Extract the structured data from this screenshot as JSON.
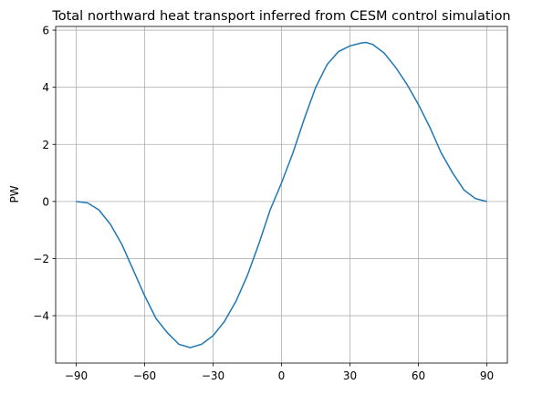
{
  "chart_data": {
    "type": "line",
    "title": "Total northward heat transport inferred from CESM control simulation",
    "ylabel": "PW",
    "x": [
      -90,
      -85,
      -80,
      -75,
      -70,
      -65,
      -60,
      -55,
      -50,
      -45,
      -40,
      -35,
      -30,
      -25,
      -20,
      -15,
      -10,
      -5,
      0,
      5,
      10,
      15,
      20,
      25,
      30,
      35,
      37,
      40,
      45,
      50,
      55,
      60,
      65,
      70,
      75,
      80,
      85,
      90
    ],
    "series": [
      {
        "color": "#1f77b4",
        "values": [
          0,
          -0.05,
          -0.3,
          -0.8,
          -1.5,
          -2.4,
          -3.3,
          -4.1,
          -4.6,
          -5.0,
          -5.12,
          -5.0,
          -4.7,
          -4.2,
          -3.5,
          -2.6,
          -1.5,
          -0.3,
          0.65,
          1.7,
          2.9,
          4.0,
          4.8,
          5.25,
          5.45,
          5.55,
          5.57,
          5.5,
          5.2,
          4.7,
          4.1,
          3.4,
          2.6,
          1.7,
          1.0,
          0.4,
          0.1,
          0
        ]
      }
    ],
    "xlim": [
      -99,
      99
    ],
    "ylim": [
      -5.66,
      6.13
    ],
    "xticks": [
      {
        "value": -90,
        "label": "−90"
      },
      {
        "value": -60,
        "label": "−60"
      },
      {
        "value": -30,
        "label": "−30"
      },
      0,
      30,
      60,
      90
    ],
    "yticks": [
      {
        "value": -4,
        "label": "−4"
      },
      {
        "value": -2,
        "label": "−2"
      },
      0,
      2,
      4,
      6
    ],
    "grid": true
  }
}
